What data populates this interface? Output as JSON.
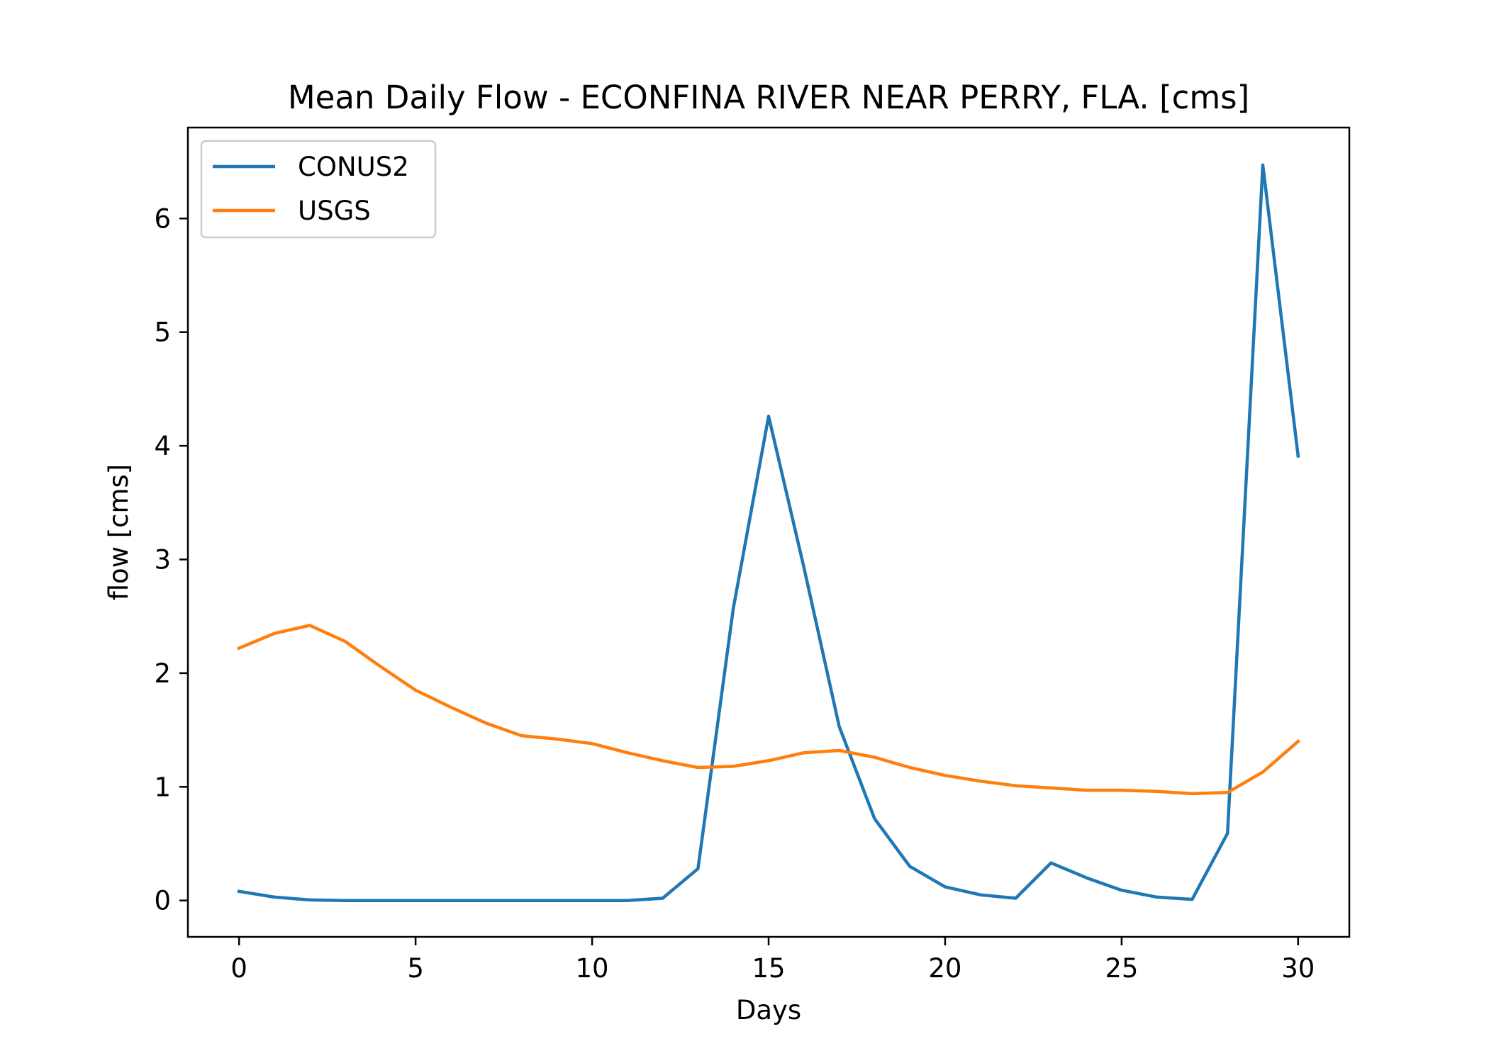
{
  "chart_data": {
    "type": "line",
    "title": "Mean Daily Flow - ECONFINA RIVER NEAR PERRY, FLA. [cms]",
    "xlabel": "Days",
    "ylabel": "flow [cms]",
    "xlim": [
      -1.45,
      31.45
    ],
    "ylim": [
      -0.32,
      6.8
    ],
    "xticks": [
      0,
      5,
      10,
      15,
      20,
      25,
      30
    ],
    "xtick_labels": [
      "0",
      "5",
      "10",
      "15",
      "20",
      "25",
      "30"
    ],
    "yticks": [
      0,
      1,
      2,
      3,
      4,
      5,
      6
    ],
    "ytick_labels": [
      "0",
      "1",
      "2",
      "3",
      "4",
      "5",
      "6"
    ],
    "grid": false,
    "legend_position": "upper-left",
    "x": [
      0,
      1,
      2,
      3,
      4,
      5,
      6,
      7,
      8,
      9,
      10,
      11,
      12,
      13,
      14,
      15,
      16,
      17,
      18,
      19,
      20,
      21,
      22,
      23,
      24,
      25,
      26,
      27,
      28,
      29,
      30
    ],
    "series": [
      {
        "name": "CONUS2",
        "color": "#1f77b4",
        "values": [
          0.08,
          0.03,
          0.005,
          0.0,
          0.0,
          0.0,
          0.0,
          0.0,
          0.0,
          0.0,
          0.0,
          0.0,
          0.02,
          0.28,
          2.57,
          4.26,
          2.93,
          1.53,
          0.72,
          0.3,
          0.12,
          0.05,
          0.02,
          0.33,
          0.2,
          0.09,
          0.03,
          0.01,
          0.59,
          6.47,
          3.91
        ]
      },
      {
        "name": "USGS",
        "color": "#ff7f0e",
        "values": [
          2.22,
          2.35,
          2.42,
          2.28,
          2.06,
          1.85,
          1.7,
          1.56,
          1.45,
          1.42,
          1.38,
          1.3,
          1.23,
          1.17,
          1.18,
          1.23,
          1.3,
          1.32,
          1.26,
          1.17,
          1.1,
          1.05,
          1.01,
          0.99,
          0.97,
          0.97,
          0.96,
          0.94,
          0.95,
          1.13,
          1.4
        ]
      }
    ]
  }
}
